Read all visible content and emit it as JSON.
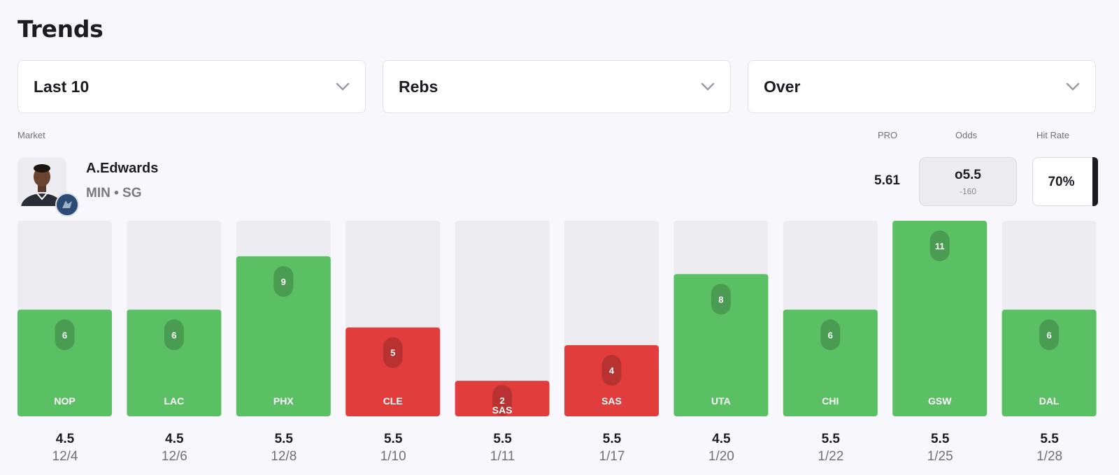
{
  "title": "Trends",
  "filters": {
    "range": "Last 10",
    "stat": "Rebs",
    "side": "Over"
  },
  "labels": {
    "market": "Market",
    "pro": "PRO",
    "odds": "Odds",
    "hit_rate": "Hit Rate"
  },
  "player": {
    "name": "A.Edwards",
    "meta": "MIN • SG",
    "pro": "5.61",
    "odds_line": "o5.5",
    "odds_price": "-160",
    "hit_rate": "70%"
  },
  "colors": {
    "hit": "#5bbf64",
    "miss": "#e23d3d",
    "track": "#ececf1",
    "background": "#f8f8fc"
  },
  "icons": [
    "chevron-down-icon",
    "player-headshot",
    "team-logo-icon"
  ],
  "chart_data": {
    "type": "bar",
    "title": "",
    "ylim": [
      0,
      11
    ],
    "categories": [
      "NOP",
      "LAC",
      "PHX",
      "CLE",
      "SAS",
      "SAS",
      "UTA",
      "CHI",
      "GSW",
      "DAL"
    ],
    "values": [
      6,
      6,
      9,
      5,
      2,
      4,
      8,
      6,
      11,
      6
    ],
    "lines": [
      4.5,
      4.5,
      5.5,
      5.5,
      5.5,
      5.5,
      4.5,
      5.5,
      5.5,
      5.5
    ],
    "dates": [
      "12/4",
      "12/6",
      "12/8",
      "1/10",
      "1/11",
      "1/17",
      "1/20",
      "1/22",
      "1/25",
      "1/28"
    ],
    "result": [
      "hit",
      "hit",
      "hit",
      "miss",
      "miss",
      "miss",
      "hit",
      "hit",
      "hit",
      "hit"
    ]
  }
}
